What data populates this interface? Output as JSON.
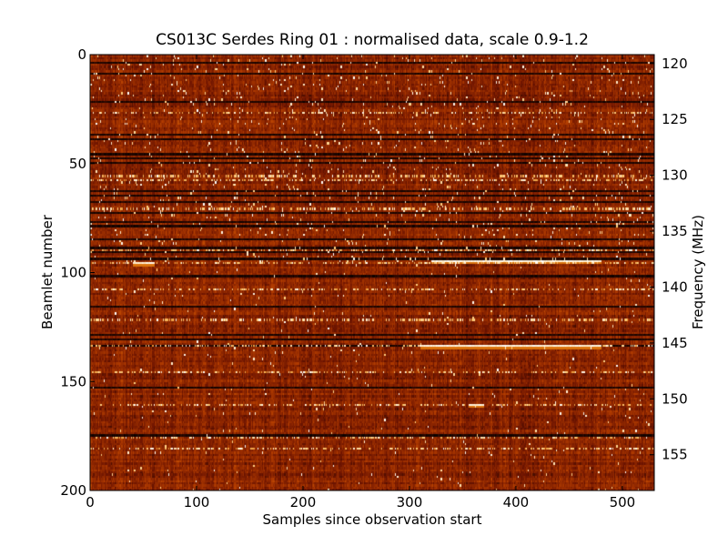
{
  "chart_data": {
    "type": "heatmap",
    "title": "CS013C Serdes Ring 01 : normalised data, scale 0.9-1.2",
    "xlabel": "Samples since observation start",
    "ylabel": "Beamlet number",
    "y2label": "Frequency (MHz)",
    "xlim": [
      0,
      530
    ],
    "ylim": [
      200,
      0
    ],
    "y2lim": [
      158.2,
      119.2
    ],
    "color_scale": [
      0.9,
      1.2
    ],
    "colormap": "gist_heat",
    "colormap_colors": [
      "#000000",
      "#6e1400",
      "#b23c00",
      "#e07a10",
      "#ffd080",
      "#ffffff"
    ],
    "x_ticks": [
      "0",
      "100",
      "200",
      "300",
      "400",
      "500"
    ],
    "y_ticks": [
      "0",
      "50",
      "100",
      "150",
      "200"
    ],
    "y2_ticks": [
      "120",
      "125",
      "130",
      "135",
      "140",
      "145",
      "150",
      "155"
    ],
    "dark_rows": [
      3,
      8,
      21,
      36,
      38,
      45,
      47,
      49,
      62,
      64,
      67,
      72,
      76,
      78,
      84,
      88,
      90,
      93,
      101,
      115,
      128,
      130,
      133,
      152,
      174
    ],
    "bright_rows": [
      26,
      55,
      57,
      70,
      89,
      95,
      107,
      121,
      133,
      145,
      160,
      175,
      180
    ],
    "bright_streaks": [
      {
        "row": 94,
        "x_start": 320,
        "x_end": 480
      },
      {
        "row": 133,
        "x_start": 310,
        "x_end": 480
      },
      {
        "row": 95,
        "x_start": 40,
        "x_end": 60
      },
      {
        "row": 160,
        "x_start": 355,
        "x_end": 370
      }
    ]
  }
}
